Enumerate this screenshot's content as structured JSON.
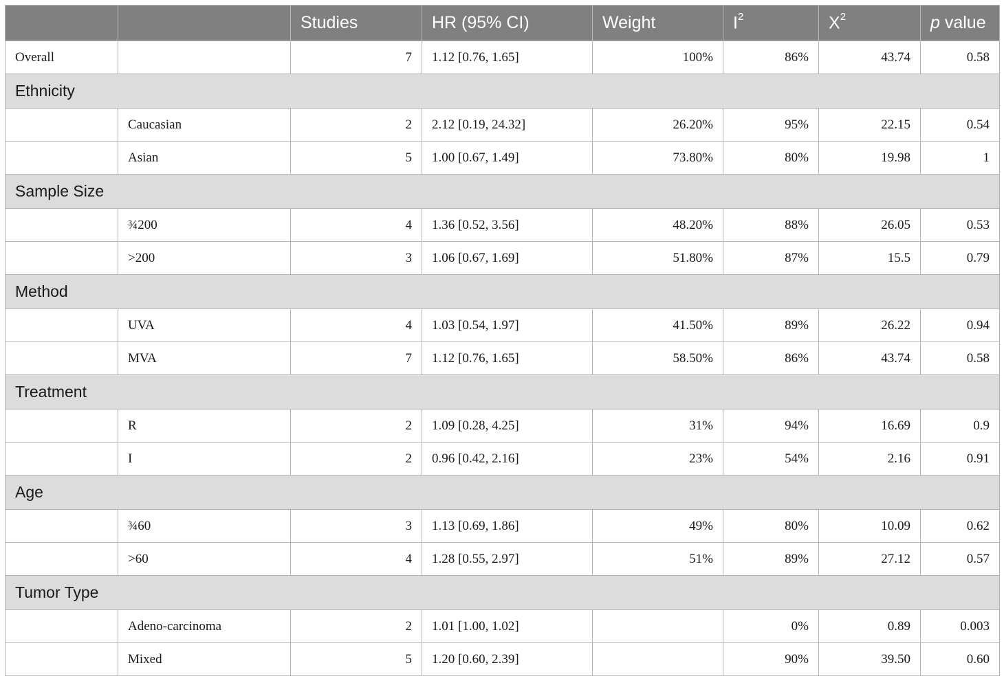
{
  "header": {
    "col0": "",
    "col1": "",
    "studies": "Studies",
    "hr": "HR (95% CI)",
    "weight": "Weight",
    "i2_base": "I",
    "i2_sup": "2",
    "x2_base": "X",
    "x2_sup": "2",
    "p_italic": "p",
    "p_rest": " value"
  },
  "overall": {
    "label": "Overall",
    "studies": "7",
    "hr": "1.12 [0.76, 1.65]",
    "weight": "100%",
    "i2": "86%",
    "x2": "43.74",
    "p": "0.58"
  },
  "sections": [
    {
      "title": "Ethnicity",
      "rows": [
        {
          "label": "Caucasian",
          "studies": "2",
          "hr": "2.12 [0.19, 24.32]",
          "weight": "26.20%",
          "i2": "95%",
          "x2": "22.15",
          "p": "0.54"
        },
        {
          "label": "Asian",
          "studies": "5",
          "hr": "1.00 [0.67, 1.49]",
          "weight": "73.80%",
          "i2": "80%",
          "x2": "19.98",
          "p": "1"
        }
      ]
    },
    {
      "title": "Sample Size",
      "rows": [
        {
          "label": "¾200",
          "studies": "4",
          "hr": "1.36 [0.52, 3.56]",
          "weight": "48.20%",
          "i2": "88%",
          "x2": "26.05",
          "p": "0.53"
        },
        {
          "label": ">200",
          "studies": "3",
          "hr": "1.06 [0.67, 1.69]",
          "weight": "51.80%",
          "i2": "87%",
          "x2": "15.5",
          "p": "0.79"
        }
      ]
    },
    {
      "title": "Method",
      "rows": [
        {
          "label": "UVA",
          "studies": "4",
          "hr": "1.03 [0.54, 1.97]",
          "weight": "41.50%",
          "i2": "89%",
          "x2": "26.22",
          "p": "0.94"
        },
        {
          "label": "MVA",
          "studies": "7",
          "hr": "1.12 [0.76, 1.65]",
          "weight": "58.50%",
          "i2": "86%",
          "x2": "43.74",
          "p": "0.58"
        }
      ]
    },
    {
      "title": "Treatment",
      "rows": [
        {
          "label": "R",
          "studies": "2",
          "hr": "1.09 [0.28, 4.25]",
          "weight": "31%",
          "i2": "94%",
          "x2": "16.69",
          "p": "0.9"
        },
        {
          "label": "I",
          "studies": "2",
          "hr": "0.96 [0.42, 2.16]",
          "weight": "23%",
          "i2": "54%",
          "x2": "2.16",
          "p": "0.91"
        }
      ]
    },
    {
      "title": "Age",
      "rows": [
        {
          "label": "¾60",
          "studies": "3",
          "hr": "1.13 [0.69, 1.86]",
          "weight": "49%",
          "i2": "80%",
          "x2": "10.09",
          "p": "0.62"
        },
        {
          "label": ">60",
          "studies": "4",
          "hr": "1.28 [0.55, 2.97]",
          "weight": "51%",
          "i2": "89%",
          "x2": "27.12",
          "p": "0.57"
        }
      ]
    },
    {
      "title": "Tumor Type",
      "rows": [
        {
          "label": "Adeno-carcinoma",
          "studies": "2",
          "hr": "1.01 [1.00, 1.02]",
          "weight": "",
          "i2": "0%",
          "x2": "0.89",
          "p": "0.003"
        },
        {
          "label": "Mixed",
          "studies": "5",
          "hr": "1.20 [0.60, 2.39]",
          "weight": "",
          "i2": "90%",
          "x2": "39.50",
          "p": "0.60"
        }
      ]
    }
  ]
}
